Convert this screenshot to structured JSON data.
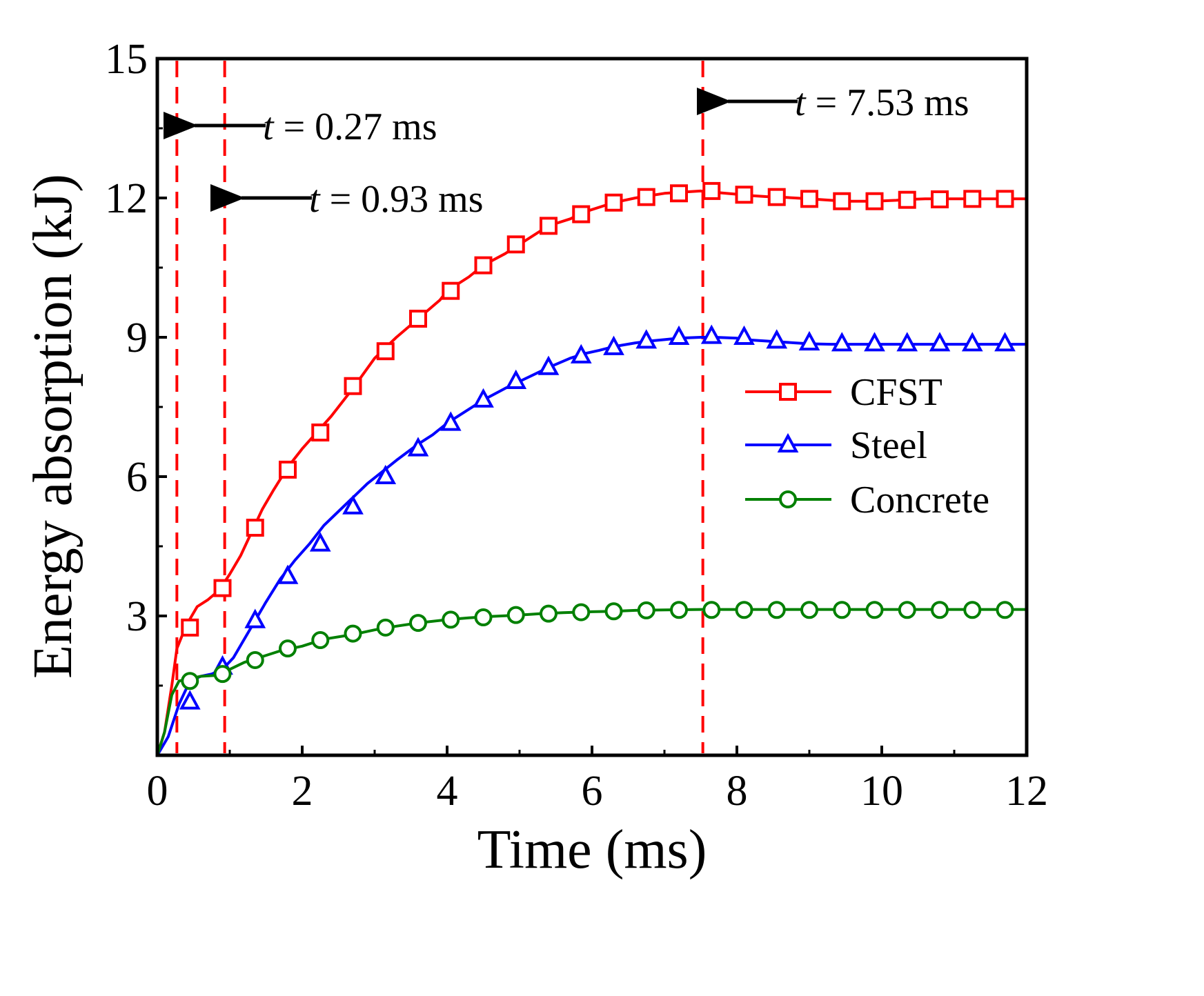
{
  "chart_data": {
    "type": "line",
    "title": "",
    "xlabel": "Time (ms)",
    "ylabel": "Energy absorption (kJ)",
    "xlim": [
      0,
      12
    ],
    "ylim": [
      0,
      15
    ],
    "xticks": [
      0,
      2,
      4,
      6,
      8,
      10,
      12
    ],
    "yticks": [
      3,
      6,
      9,
      12,
      15
    ],
    "xtick_labels": [
      "0",
      "2",
      "4",
      "6",
      "8",
      "10",
      "12"
    ],
    "ytick_labels": [
      "3",
      "6",
      "9",
      "12",
      "15"
    ],
    "grid": false,
    "legend_position": "right",
    "series": [
      {
        "name": "CFST",
        "color": "#ff0000",
        "marker": "square",
        "x": [
          0.0,
          0.1,
          0.2,
          0.27,
          0.4,
          0.55,
          0.7,
          0.85,
          1.0,
          1.15,
          1.3,
          1.45,
          1.6,
          1.8,
          2.0,
          2.2,
          2.4,
          2.7,
          3.0,
          3.1,
          3.3,
          3.6,
          3.9,
          4.0,
          4.3,
          4.5,
          4.8,
          5.0,
          5.3,
          5.4,
          5.7,
          5.9,
          6.2,
          6.3,
          6.6,
          6.8,
          7.0,
          7.2,
          7.5,
          7.7,
          8.0,
          8.1,
          8.4,
          8.6,
          8.8,
          9.0,
          9.3,
          9.5,
          9.7,
          9.9,
          10.2,
          10.4,
          10.6,
          10.8,
          11.0,
          11.2,
          11.5,
          11.7,
          12.0
        ],
        "y": [
          0.0,
          0.5,
          1.5,
          2.3,
          2.8,
          3.2,
          3.35,
          3.55,
          3.9,
          4.3,
          4.8,
          5.3,
          5.7,
          6.2,
          6.6,
          6.95,
          7.3,
          7.9,
          8.55,
          8.7,
          9.0,
          9.4,
          9.8,
          10.0,
          10.3,
          10.55,
          10.8,
          11.0,
          11.3,
          11.4,
          11.55,
          11.7,
          11.85,
          11.9,
          12.0,
          12.05,
          12.1,
          12.12,
          12.15,
          12.12,
          12.08,
          12.06,
          12.03,
          12.02,
          12.0,
          11.98,
          11.95,
          11.93,
          11.93,
          11.93,
          11.95,
          11.97,
          11.98,
          11.98,
          11.98,
          11.98,
          11.98,
          11.98,
          11.98
        ],
        "marker_x": [
          0.45,
          0.9,
          1.35,
          1.8,
          2.25,
          2.7,
          3.15,
          3.6,
          4.05,
          4.5,
          4.95,
          5.4,
          5.85,
          6.3,
          6.75,
          7.2,
          7.65,
          8.1,
          8.55,
          9.0,
          9.45,
          9.9,
          10.35,
          10.8,
          11.25,
          11.7
        ],
        "marker_y": [
          2.75,
          3.6,
          4.9,
          6.15,
          6.95,
          7.95,
          8.7,
          9.4,
          10.0,
          10.55,
          11.0,
          11.4,
          11.65,
          11.9,
          12.02,
          12.1,
          12.15,
          12.07,
          12.02,
          11.98,
          11.93,
          11.93,
          11.96,
          11.97,
          11.98,
          11.98
        ]
      },
      {
        "name": "Steel",
        "color": "#0000ff",
        "marker": "triangle",
        "x": [
          0.0,
          0.15,
          0.3,
          0.45,
          0.6,
          0.75,
          0.9,
          1.05,
          1.2,
          1.35,
          1.5,
          1.7,
          1.9,
          2.1,
          2.3,
          2.5,
          2.7,
          2.9,
          3.1,
          3.3,
          3.6,
          3.8,
          4.0,
          4.2,
          4.5,
          4.8,
          5.0,
          5.2,
          5.4,
          5.7,
          5.9,
          6.1,
          6.3,
          6.6,
          6.8,
          7.0,
          7.2,
          7.5,
          7.7,
          8.0,
          8.1,
          8.4,
          8.6,
          8.8,
          9.0,
          9.3,
          9.5,
          9.7,
          9.9,
          10.2,
          10.4,
          10.6,
          10.8,
          11.0,
          11.2,
          11.5,
          11.7,
          12.0
        ],
        "y": [
          0.0,
          0.4,
          1.1,
          1.6,
          1.7,
          1.75,
          1.85,
          2.1,
          2.5,
          2.9,
          3.3,
          3.8,
          4.2,
          4.55,
          4.95,
          5.25,
          5.55,
          5.85,
          6.1,
          6.35,
          6.7,
          6.9,
          7.15,
          7.35,
          7.65,
          7.9,
          8.05,
          8.2,
          8.35,
          8.55,
          8.65,
          8.72,
          8.8,
          8.88,
          8.92,
          8.95,
          8.98,
          9.0,
          9.0,
          8.98,
          8.95,
          8.92,
          8.9,
          8.88,
          8.86,
          8.85,
          8.85,
          8.85,
          8.85,
          8.85,
          8.85,
          8.85,
          8.85,
          8.85,
          8.85,
          8.85,
          8.85,
          8.85
        ],
        "marker_x": [
          0.45,
          0.9,
          1.35,
          1.8,
          2.25,
          2.7,
          3.15,
          3.6,
          4.05,
          4.5,
          4.95,
          5.4,
          5.85,
          6.3,
          6.75,
          7.2,
          7.65,
          8.1,
          8.55,
          9.0,
          9.45,
          9.9,
          10.35,
          10.8,
          11.25,
          11.7
        ],
        "marker_y": [
          1.15,
          1.9,
          2.9,
          3.85,
          4.55,
          5.35,
          6.0,
          6.6,
          7.15,
          7.65,
          8.05,
          8.35,
          8.6,
          8.78,
          8.92,
          9.0,
          9.02,
          9.0,
          8.92,
          8.88,
          8.86,
          8.86,
          8.86,
          8.86,
          8.86,
          8.86
        ]
      },
      {
        "name": "Concrete",
        "color": "#008000",
        "marker": "circle",
        "x": [
          0.0,
          0.1,
          0.2,
          0.3,
          0.45,
          0.6,
          0.8,
          1.0,
          1.2,
          1.4,
          1.7,
          2.0,
          2.3,
          2.7,
          3.0,
          3.3,
          3.6,
          4.0,
          4.3,
          4.6,
          5.0,
          5.3,
          5.6,
          6.0,
          6.3,
          6.6,
          7.0,
          7.5,
          8.0,
          9.0,
          10.0,
          11.0,
          12.0
        ],
        "y": [
          0.0,
          0.5,
          1.3,
          1.6,
          1.65,
          1.7,
          1.72,
          1.85,
          2.0,
          2.1,
          2.25,
          2.35,
          2.5,
          2.6,
          2.7,
          2.78,
          2.85,
          2.92,
          2.96,
          2.99,
          3.02,
          3.05,
          3.07,
          3.09,
          3.1,
          3.12,
          3.13,
          3.14,
          3.14,
          3.14,
          3.14,
          3.14,
          3.14
        ],
        "marker_x": [
          0.45,
          0.9,
          1.35,
          1.8,
          2.25,
          2.7,
          3.15,
          3.6,
          4.05,
          4.5,
          4.95,
          5.4,
          5.85,
          6.3,
          6.75,
          7.2,
          7.65,
          8.1,
          8.55,
          9.0,
          9.45,
          9.9,
          10.35,
          10.8,
          11.25,
          11.7
        ],
        "marker_y": [
          1.6,
          1.75,
          2.05,
          2.3,
          2.48,
          2.62,
          2.75,
          2.85,
          2.92,
          2.97,
          3.02,
          3.05,
          3.08,
          3.1,
          3.12,
          3.13,
          3.13,
          3.13,
          3.13,
          3.13,
          3.13,
          3.13,
          3.13,
          3.13,
          3.13,
          3.13
        ]
      }
    ],
    "reference_lines": [
      {
        "x": 0.27,
        "color": "#ff0000",
        "style": "dashed"
      },
      {
        "x": 0.93,
        "color": "#ff0000",
        "style": "dashed"
      },
      {
        "x": 7.53,
        "color": "#ff0000",
        "style": "dashed"
      }
    ],
    "annotations": [
      {
        "var": "t",
        "rest": " = 0.27 ms",
        "arrow_to_x": 0.27,
        "y": 13.6
      },
      {
        "var": "t",
        "rest": " = 0.93 ms",
        "arrow_to_x": 0.93,
        "y": 12.0
      },
      {
        "var": "t",
        "rest": " = 7.53 ms",
        "arrow_to_x": 7.53,
        "y": 14.15
      }
    ]
  }
}
